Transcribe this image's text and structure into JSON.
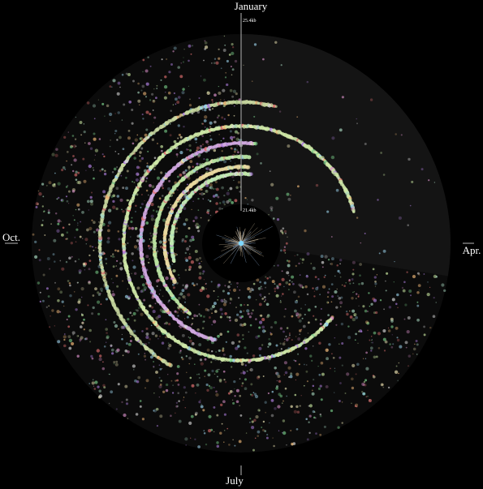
{
  "chart_data": {
    "type": "scatter",
    "title": "",
    "description_axes": "radial spiral timeline by month",
    "month_labels": {
      "top": "January",
      "right": "Apr.",
      "bottom": "July",
      "left": "Oct."
    },
    "ring_labels": {
      "outer": "25.4kb",
      "inner": "21.4kb"
    },
    "background_color": "#000000",
    "disc_color": "#0b0b0b",
    "wedge_color": "#151515",
    "series_colors": [
      "#c8e6a0",
      "#e8e0b0",
      "#a8d8c0",
      "#d890c8",
      "#f0b878",
      "#9ad0e8",
      "#b080e0",
      "#80d890",
      "#e07070",
      "#d8d8d8"
    ],
    "highlight_rings": [
      {
        "start_month": 4.3,
        "span_months": 10.2,
        "level": 0.46,
        "color": "#cfe8a8"
      },
      {
        "start_month": 7.0,
        "span_months": 5.5,
        "level": 0.6,
        "color": "#c8d8a0"
      },
      {
        "start_month": 6.5,
        "span_months": 5.8,
        "level": 0.36,
        "color": "#d0a8e0"
      },
      {
        "start_month": 7.2,
        "span_months": 5.0,
        "level": 0.28,
        "color": "#b8e0a0"
      },
      {
        "start_month": 8.0,
        "span_months": 4.2,
        "level": 0.22,
        "color": "#e8d8a0"
      },
      {
        "start_month": 8.5,
        "span_months": 3.8,
        "level": 0.18,
        "color": "#c0e8b0"
      }
    ]
  }
}
